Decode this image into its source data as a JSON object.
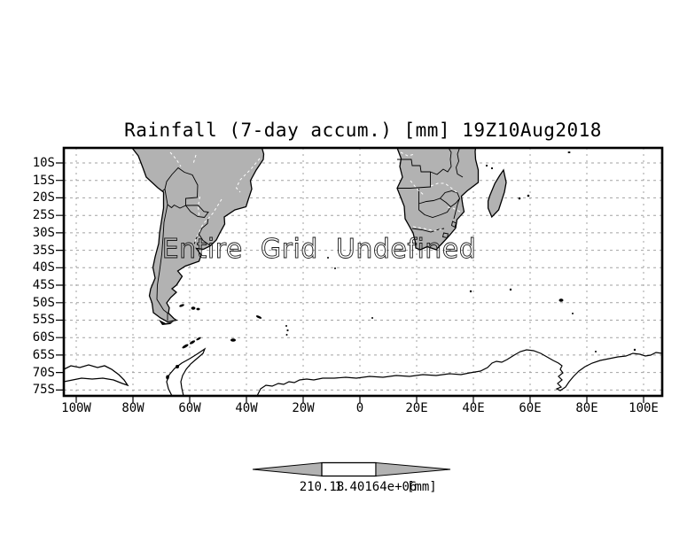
{
  "figure": {
    "title": "Rainfall (7-day accum.) [mm] 19Z10Aug2018",
    "overlay_text": "Entire Grid Undefined"
  },
  "axes": {
    "lat_labels": [
      "10S",
      "15S",
      "20S",
      "25S",
      "30S",
      "35S",
      "40S",
      "45S",
      "50S",
      "55S",
      "60S",
      "65S",
      "70S",
      "75S"
    ],
    "lon_labels": [
      "100W",
      "80W",
      "60W",
      "40W",
      "20W",
      "0",
      "20E",
      "40E",
      "60E",
      "80E",
      "100E"
    ]
  },
  "colorbar": {
    "left_label": "210.18",
    "right_label": "1.40164e+06",
    "units_label": "[mm]"
  },
  "colors": {
    "land_fill": "#b2b2b2",
    "grid_line": "#a2a2a2",
    "coast_line": "#000000",
    "background": "#ffffff"
  },
  "chart_data": {
    "type": "heatmap",
    "subtype": "geographic-map",
    "title": "Rainfall (7-day accum.) [mm] 19Z10Aug2018",
    "variable": "Rainfall (7-day accum.)",
    "units": "mm",
    "valid_time": "19Z10Aug2018",
    "status_annotation": "Entire Grid Undefined",
    "x_axis": {
      "label": "longitude",
      "ticks": [
        "100W",
        "80W",
        "60W",
        "40W",
        "20W",
        "0",
        "20E",
        "40E",
        "60E",
        "80E",
        "100E"
      ]
    },
    "y_axis": {
      "label": "latitude",
      "ticks": [
        "10S",
        "15S",
        "20S",
        "25S",
        "30S",
        "35S",
        "40S",
        "45S",
        "50S",
        "55S",
        "60S",
        "65S",
        "70S",
        "75S"
      ]
    },
    "grid": true,
    "legend_position": "bottom-center",
    "colorbar_tick_values": [
      210.18,
      1401640
    ],
    "colorbar_tick_labels": [
      "210.18",
      "1.40164e+06"
    ],
    "data_points": "none (entire grid undefined)"
  }
}
